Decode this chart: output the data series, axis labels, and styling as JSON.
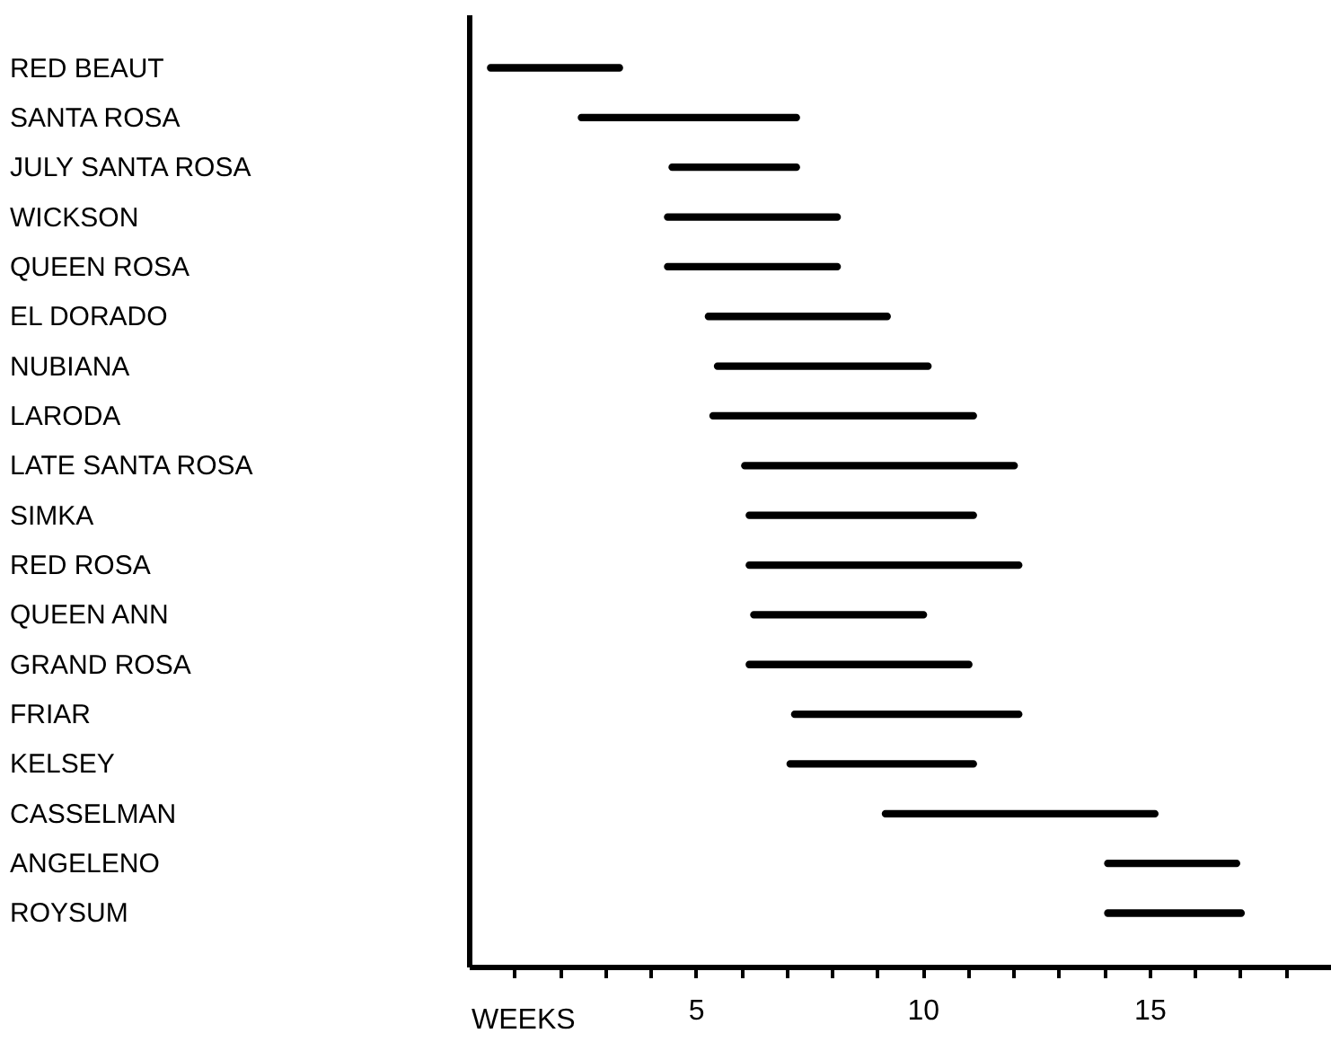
{
  "chart_data": {
    "type": "bar",
    "orientation": "horizontal",
    "categories": [
      "RED BEAUT",
      "SANTA ROSA",
      "JULY SANTA ROSA",
      "WICKSON",
      "QUEEN ROSA",
      "EL DORADO",
      "NUBIANA",
      "LARODA",
      "LATE SANTA ROSA",
      "SIMKA",
      "RED ROSA",
      "QUEEN ANN",
      "GRAND ROSA",
      "FRIAR",
      "KELSEY",
      "CASSELMAN",
      "ANGELENO",
      "ROYSUM"
    ],
    "base": [
      0.4,
      2.4,
      4.4,
      4.3,
      4.3,
      5.2,
      5.4,
      5.3,
      6.0,
      6.1,
      6.1,
      6.2,
      6.1,
      7.1,
      7.0,
      9.1,
      14.0,
      14.0
    ],
    "values": [
      3.0,
      4.9,
      2.9,
      3.9,
      3.9,
      4.1,
      4.8,
      5.9,
      6.1,
      5.1,
      6.1,
      3.9,
      5.0,
      5.1,
      4.2,
      6.1,
      3.0,
      3.1
    ],
    "color": "#000000",
    "xlabel": "WEEKS",
    "xlim": [
      0,
      19
    ],
    "xticks": [
      {
        "value": 1,
        "label": null
      },
      {
        "value": 2,
        "label": null
      },
      {
        "value": 3,
        "label": null
      },
      {
        "value": 4,
        "label": null
      },
      5,
      {
        "value": 6,
        "label": null
      },
      {
        "value": 7,
        "label": null
      },
      {
        "value": 8,
        "label": null
      },
      {
        "value": 9,
        "label": null
      },
      10,
      {
        "value": 11,
        "label": null
      },
      {
        "value": 12,
        "label": null
      },
      {
        "value": 13,
        "label": null
      },
      {
        "value": 14,
        "label": null
      },
      15,
      {
        "value": 16,
        "label": null
      },
      {
        "value": 17,
        "label": null
      },
      {
        "value": 18,
        "label": null
      }
    ]
  }
}
